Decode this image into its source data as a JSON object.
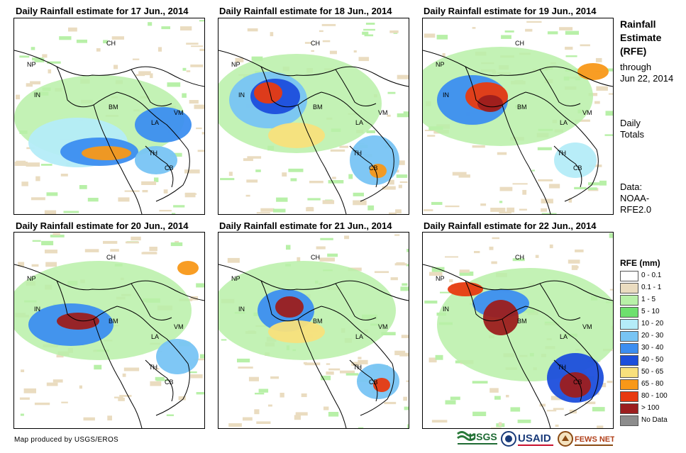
{
  "panels": [
    {
      "title": "Daily Rainfall estimate for 17 Jun., 2014"
    },
    {
      "title": "Daily Rainfall estimate for 18 Jun., 2014"
    },
    {
      "title": "Daily Rainfall estimate for 19 Jun., 2014"
    },
    {
      "title": "Daily Rainfall estimate for 20 Jun., 2014"
    },
    {
      "title": "Daily Rainfall estimate for 21 Jun., 2014"
    },
    {
      "title": "Daily Rainfall estimate for 22 Jun., 2014"
    }
  ],
  "labels": {
    "ch": "CH",
    "np": "NP",
    "in": "IN",
    "bm": "BM",
    "la": "LA",
    "vm": "VM",
    "th": "TH",
    "cb": "CB"
  },
  "side": {
    "title1": "Rainfall",
    "title2": "Estimate",
    "title3": "(RFE)",
    "through": "through",
    "date": "Jun 22, 2014",
    "daily": "Daily",
    "totals": "Totals",
    "data_label": "Data:",
    "noaa": "NOAA-",
    "rfe": "RFE2.0"
  },
  "legend": {
    "title": "RFE (mm)",
    "items": [
      {
        "label": "0 - 0.1",
        "color": "#ffffff"
      },
      {
        "label": "0.1 - 1",
        "color": "#eadcc0"
      },
      {
        "label": "1 - 5",
        "color": "#b8f0a8"
      },
      {
        "label": "5 - 10",
        "color": "#6ee06e"
      },
      {
        "label": "10 - 20",
        "color": "#b4ecf8"
      },
      {
        "label": "20 - 30",
        "color": "#78c4f4"
      },
      {
        "label": "30 - 40",
        "color": "#3c8ef0"
      },
      {
        "label": "40 - 50",
        "color": "#1c4edc"
      },
      {
        "label": "50 - 65",
        "color": "#f8e07c"
      },
      {
        "label": "65 - 80",
        "color": "#f89818"
      },
      {
        "label": "80 - 100",
        "color": "#e83a10"
      },
      {
        "label": "> 100",
        "color": "#9c1e1e"
      },
      {
        "label": "No Data",
        "color": "#8c8c8c"
      }
    ]
  },
  "credit": "Map produced by USGS/EROS",
  "logos": {
    "usgs": "USGS",
    "usaid": "USAID",
    "fews": "FEWS NET"
  }
}
